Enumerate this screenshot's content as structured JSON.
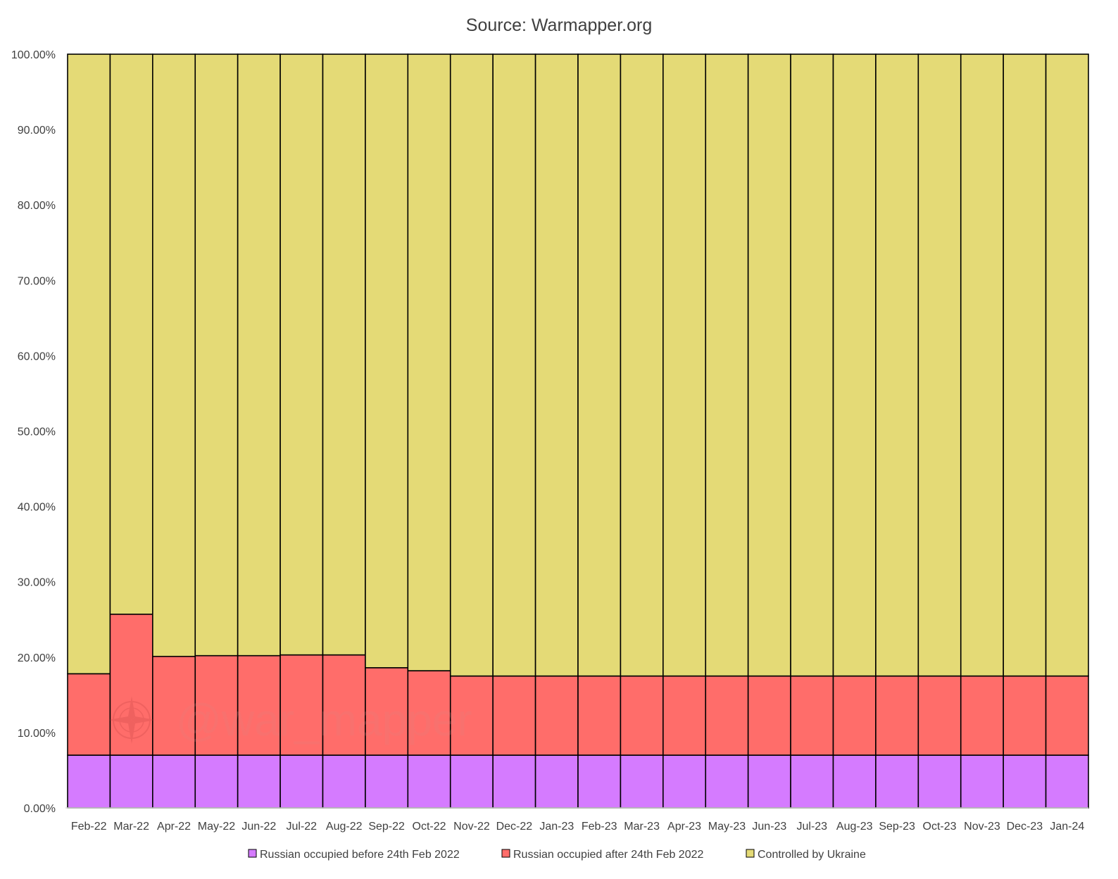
{
  "chart_data": {
    "type": "bar",
    "stacked": "percent",
    "title": "Source: Warmapper.org",
    "xlabel": "",
    "ylabel": "",
    "ylim": [
      0,
      100
    ],
    "yticks": [
      "0.00%",
      "10.00%",
      "20.00%",
      "30.00%",
      "40.00%",
      "50.00%",
      "60.00%",
      "70.00%",
      "80.00%",
      "90.00%",
      "100.00%"
    ],
    "grid": false,
    "legend_position": "bottom",
    "categories": [
      "Feb-22",
      "Mar-22",
      "Apr-22",
      "May-22",
      "Jun-22",
      "Jul-22",
      "Aug-22",
      "Sep-22",
      "Oct-22",
      "Nov-22",
      "Dec-22",
      "Jan-23",
      "Feb-23",
      "Mar-23",
      "Apr-23",
      "May-23",
      "Jun-23",
      "Jul-23",
      "Aug-23",
      "Sep-23",
      "Oct-23",
      "Nov-23",
      "Dec-23",
      "Jan-24"
    ],
    "series": [
      {
        "name": "Russian occupied before 24th Feb 2022",
        "color": "#d57bff",
        "values": [
          7.0,
          7.0,
          7.0,
          7.0,
          7.0,
          7.0,
          7.0,
          7.0,
          7.0,
          7.0,
          7.0,
          7.0,
          7.0,
          7.0,
          7.0,
          7.0,
          7.0,
          7.0,
          7.0,
          7.0,
          7.0,
          7.0,
          7.0,
          7.0
        ]
      },
      {
        "name": "Russian occupied after 24th Feb 2022",
        "color": "#ff6d6a",
        "values": [
          10.8,
          18.7,
          13.1,
          13.2,
          13.2,
          13.3,
          13.3,
          11.6,
          11.2,
          10.5,
          10.5,
          10.5,
          10.5,
          10.5,
          10.5,
          10.5,
          10.5,
          10.5,
          10.5,
          10.5,
          10.5,
          10.5,
          10.5,
          10.5
        ]
      },
      {
        "name": "Controlled by Ukraine",
        "color": "#e4da76",
        "values": [
          82.2,
          74.3,
          79.9,
          79.8,
          79.8,
          79.7,
          79.7,
          81.4,
          81.8,
          82.5,
          82.5,
          82.5,
          82.5,
          82.5,
          82.5,
          82.5,
          82.5,
          82.5,
          82.5,
          82.5,
          82.5,
          82.5,
          82.5,
          82.5
        ]
      }
    ],
    "watermark": "@war_mapper"
  }
}
